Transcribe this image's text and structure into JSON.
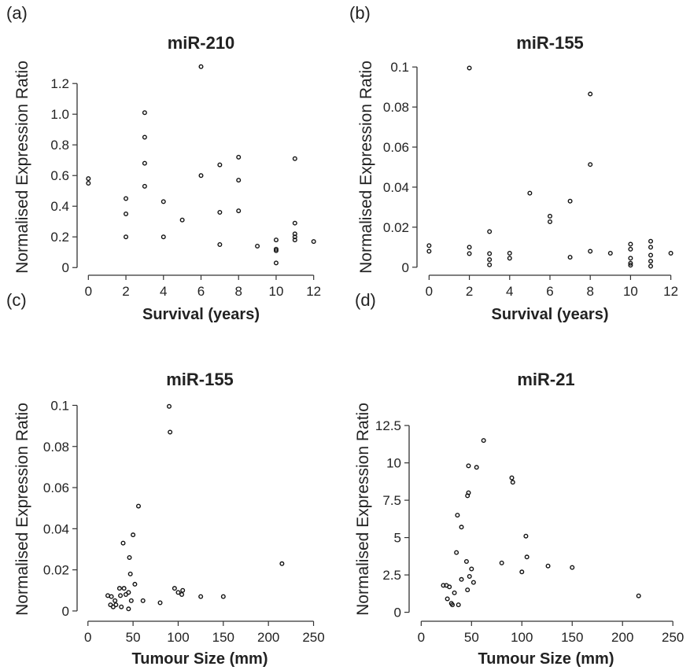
{
  "chart_data": [
    {
      "type": "scatter",
      "panel": "(a)",
      "title": "miR-210",
      "xlabel": "Survival (years)",
      "ylabel": "Normalised Expression Ratio",
      "xlim": [
        -0.6,
        12.6
      ],
      "ylim": [
        -0.05,
        1.36
      ],
      "xticks": [
        0,
        2,
        4,
        6,
        8,
        10,
        12
      ],
      "yticks": [
        0,
        0.2,
        0.4,
        0.6,
        0.8,
        1.0,
        1.2
      ],
      "ytick_labels": [
        "0",
        "0.2",
        "0.4",
        "0.6",
        "0.8",
        "1.0",
        "1.2"
      ],
      "points": [
        [
          0,
          0.58
        ],
        [
          0,
          0.55
        ],
        [
          2,
          0.45
        ],
        [
          2,
          0.35
        ],
        [
          2,
          0.2
        ],
        [
          3,
          1.01
        ],
        [
          3,
          0.85
        ],
        [
          3,
          0.68
        ],
        [
          3,
          0.53
        ],
        [
          4,
          0.43
        ],
        [
          4,
          0.2
        ],
        [
          5,
          0.31
        ],
        [
          6,
          1.31
        ],
        [
          6,
          0.6
        ],
        [
          7,
          0.67
        ],
        [
          7,
          0.36
        ],
        [
          7,
          0.15
        ],
        [
          8,
          0.72
        ],
        [
          8,
          0.57
        ],
        [
          8,
          0.37
        ],
        [
          9,
          0.14
        ],
        [
          10,
          0.18
        ],
        [
          10,
          0.12
        ],
        [
          10,
          0.11
        ],
        [
          10,
          0.03
        ],
        [
          11,
          0.71
        ],
        [
          11,
          0.29
        ],
        [
          11,
          0.22
        ],
        [
          11,
          0.2
        ],
        [
          11,
          0.18
        ],
        [
          12,
          0.17
        ]
      ]
    },
    {
      "type": "scatter",
      "panel": "(b)",
      "title": "miR-155",
      "xlabel": "Survival (years)",
      "ylabel": "Normalised Expression Ratio",
      "xlim": [
        -0.6,
        12.6
      ],
      "ylim": [
        -0.004,
        0.104
      ],
      "xticks": [
        0,
        2,
        4,
        6,
        8,
        10,
        12
      ],
      "yticks": [
        0,
        0.02,
        0.04,
        0.06,
        0.08,
        0.1
      ],
      "ytick_labels": [
        "0",
        "0.02",
        "0.04",
        "0.06",
        "0.08",
        "0.1"
      ],
      "points": [
        [
          0,
          0.0108
        ],
        [
          0,
          0.008
        ],
        [
          2,
          0.0995
        ],
        [
          2,
          0.01
        ],
        [
          2,
          0.0068
        ],
        [
          3,
          0.0178
        ],
        [
          3,
          0.0068
        ],
        [
          3,
          0.0038
        ],
        [
          3,
          0.0012
        ],
        [
          4,
          0.007
        ],
        [
          4,
          0.0045
        ],
        [
          5,
          0.037
        ],
        [
          6,
          0.0255
        ],
        [
          6,
          0.0227
        ],
        [
          7,
          0.033
        ],
        [
          7,
          0.005
        ],
        [
          8,
          0.0865
        ],
        [
          8,
          0.0513
        ],
        [
          8,
          0.008
        ],
        [
          9,
          0.007
        ],
        [
          10,
          0.0115
        ],
        [
          10,
          0.009
        ],
        [
          10,
          0.0045
        ],
        [
          10,
          0.002
        ],
        [
          10,
          0.001
        ],
        [
          11,
          0.013
        ],
        [
          11,
          0.01
        ],
        [
          11,
          0.006
        ],
        [
          11,
          0.003
        ],
        [
          11,
          0.0005
        ],
        [
          12,
          0.007
        ]
      ]
    },
    {
      "type": "scatter",
      "panel": "(c)",
      "title": "miR-155",
      "xlabel": "Tumour Size (mm)",
      "ylabel": "Normalised Expression Ratio",
      "xlim": [
        -12,
        260
      ],
      "ylim": [
        -0.005,
        0.104
      ],
      "xticks": [
        0,
        50,
        100,
        150,
        200,
        250
      ],
      "yticks": [
        0,
        0.02,
        0.04,
        0.06,
        0.08,
        0.1
      ],
      "ytick_labels": [
        "0",
        "0.02",
        "0.04",
        "0.06",
        "0.08",
        "0.1"
      ],
      "points": [
        [
          22,
          0.0075
        ],
        [
          26,
          0.007
        ],
        [
          25,
          0.003
        ],
        [
          28,
          0.002
        ],
        [
          30,
          0.005
        ],
        [
          31,
          0.003
        ],
        [
          35,
          0.011
        ],
        [
          36,
          0.0075
        ],
        [
          37,
          0.002
        ],
        [
          39,
          0.033
        ],
        [
          40,
          0.011
        ],
        [
          42,
          0.008
        ],
        [
          45,
          0.009
        ],
        [
          46,
          0.026
        ],
        [
          47,
          0.018
        ],
        [
          45,
          0.001
        ],
        [
          48,
          0.005
        ],
        [
          50,
          0.037
        ],
        [
          52,
          0.013
        ],
        [
          56,
          0.051
        ],
        [
          61,
          0.005
        ],
        [
          80,
          0.004
        ],
        [
          90,
          0.0995
        ],
        [
          91,
          0.087
        ],
        [
          96,
          0.011
        ],
        [
          100,
          0.009
        ],
        [
          104,
          0.008
        ],
        [
          105,
          0.01
        ],
        [
          125,
          0.007
        ],
        [
          150,
          0.007
        ],
        [
          215,
          0.023
        ]
      ]
    },
    {
      "type": "scatter",
      "panel": "(d)",
      "title": "miR-21",
      "xlabel": "Tumour Size (mm)",
      "ylabel": "Normalised Expression Ratio",
      "xlim": [
        -12,
        260
      ],
      "ylim": [
        -0.6,
        14.4
      ],
      "xticks": [
        0,
        50,
        100,
        150,
        200,
        250
      ],
      "yticks": [
        0,
        2.5,
        5,
        7.5,
        10,
        12.5
      ],
      "ytick_labels": [
        "0",
        "2.5",
        "5",
        "7.5",
        "10",
        "12.5"
      ],
      "points": [
        [
          22,
          1.8
        ],
        [
          25,
          1.8
        ],
        [
          28,
          1.7
        ],
        [
          26,
          0.9
        ],
        [
          30,
          0.6
        ],
        [
          31,
          0.5
        ],
        [
          33,
          1.3
        ],
        [
          35,
          4.0
        ],
        [
          36,
          6.5
        ],
        [
          37,
          0.5
        ],
        [
          40,
          5.7
        ],
        [
          40,
          2.2
        ],
        [
          45,
          3.4
        ],
        [
          46,
          1.5
        ],
        [
          46,
          7.8
        ],
        [
          47,
          8.0
        ],
        [
          47,
          9.8
        ],
        [
          48,
          2.4
        ],
        [
          50,
          2.9
        ],
        [
          52,
          2.0
        ],
        [
          55,
          9.7
        ],
        [
          62,
          11.5
        ],
        [
          80,
          3.3
        ],
        [
          90,
          9.0
        ],
        [
          91,
          8.7
        ],
        [
          100,
          2.7
        ],
        [
          104,
          5.1
        ],
        [
          105,
          3.7
        ],
        [
          126,
          3.1
        ],
        [
          150,
          3.0
        ],
        [
          216,
          1.1
        ]
      ]
    }
  ]
}
